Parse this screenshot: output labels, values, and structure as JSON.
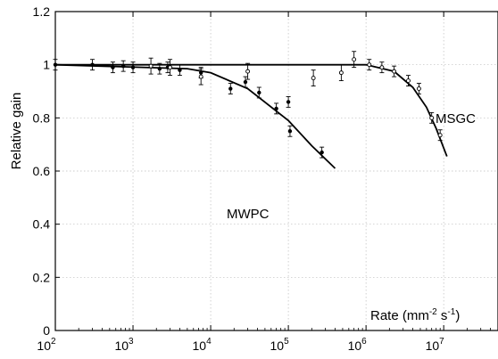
{
  "chart_data": {
    "type": "scatter",
    "title": "",
    "ylabel": "Relative gain",
    "xlabel_prefix": "Rate  (mm",
    "xlabel_sup1": "-2",
    "xlabel_mid": " s",
    "xlabel_sup2": "-1",
    "xlabel_suffix": ")",
    "xscale": "log",
    "xlim": [
      100,
      50000000
    ],
    "ylim": [
      0,
      1.2
    ],
    "grid": true,
    "x_ticks": [
      {
        "value": 100,
        "base": "10",
        "exp": "2"
      },
      {
        "value": 1000,
        "base": "10",
        "exp": "3"
      },
      {
        "value": 10000,
        "base": "10",
        "exp": "4"
      },
      {
        "value": 100000,
        "base": "10",
        "exp": "5"
      },
      {
        "value": 1000000,
        "base": "10",
        "exp": "6"
      },
      {
        "value": 10000000,
        "base": "10",
        "exp": "7"
      }
    ],
    "y_ticks": [
      {
        "value": 0,
        "label": "0"
      },
      {
        "value": 0.2,
        "label": "0.2"
      },
      {
        "value": 0.4,
        "label": "0.4"
      },
      {
        "value": 0.6,
        "label": "0.6"
      },
      {
        "value": 0.8,
        "label": "0.8"
      },
      {
        "value": 1.0,
        "label": "1"
      },
      {
        "value": 1.2,
        "label": "1.2"
      }
    ],
    "series": [
      {
        "name": "MWPC",
        "marker": "filled",
        "points": [
          {
            "x": 100,
            "y": 1.0,
            "err": 0.02
          },
          {
            "x": 300,
            "y": 1.0,
            "err": 0.02
          },
          {
            "x": 550,
            "y": 0.99,
            "err": 0.02
          },
          {
            "x": 750,
            "y": 0.995,
            "err": 0.02
          },
          {
            "x": 1000,
            "y": 0.99,
            "err": 0.02
          },
          {
            "x": 2200,
            "y": 0.985,
            "err": 0.02
          },
          {
            "x": 2800,
            "y": 0.99,
            "err": 0.02
          },
          {
            "x": 4000,
            "y": 0.98,
            "err": 0.02
          },
          {
            "x": 7500,
            "y": 0.97,
            "err": 0.02
          },
          {
            "x": 18000,
            "y": 0.91,
            "err": 0.02
          },
          {
            "x": 28000,
            "y": 0.935,
            "err": 0.02
          },
          {
            "x": 42000,
            "y": 0.895,
            "err": 0.02
          },
          {
            "x": 70000,
            "y": 0.835,
            "err": 0.02
          },
          {
            "x": 100000,
            "y": 0.86,
            "err": 0.02
          },
          {
            "x": 105000,
            "y": 0.75,
            "err": 0.02
          },
          {
            "x": 270000,
            "y": 0.67,
            "err": 0.02
          }
        ],
        "fit": [
          [
            100,
            1.0
          ],
          [
            5000,
            0.985
          ],
          [
            10000,
            0.97
          ],
          [
            30000,
            0.91
          ],
          [
            100000,
            0.79
          ],
          [
            200000,
            0.695
          ],
          [
            400000,
            0.61
          ]
        ]
      },
      {
        "name": "MSGC",
        "marker": "open",
        "points": [
          {
            "x": 1700,
            "y": 0.995,
            "err": 0.03
          },
          {
            "x": 3000,
            "y": 0.99,
            "err": 0.03
          },
          {
            "x": 7500,
            "y": 0.955,
            "err": 0.03
          },
          {
            "x": 30000,
            "y": 0.975,
            "err": 0.03
          },
          {
            "x": 210000,
            "y": 0.95,
            "err": 0.03
          },
          {
            "x": 480000,
            "y": 0.97,
            "err": 0.03
          },
          {
            "x": 700000,
            "y": 1.02,
            "err": 0.03
          },
          {
            "x": 1100000,
            "y": 1.0,
            "err": 0.02
          },
          {
            "x": 1600000,
            "y": 0.99,
            "err": 0.02
          },
          {
            "x": 2300000,
            "y": 0.975,
            "err": 0.02
          },
          {
            "x": 3500000,
            "y": 0.94,
            "err": 0.02
          },
          {
            "x": 4800000,
            "y": 0.91,
            "err": 0.02
          },
          {
            "x": 7000000,
            "y": 0.8,
            "err": 0.02
          },
          {
            "x": 9000000,
            "y": 0.735,
            "err": 0.02
          }
        ],
        "fit": [
          [
            100,
            1.0
          ],
          [
            1000000,
            1.0
          ],
          [
            2300000,
            0.975
          ],
          [
            4000000,
            0.915
          ],
          [
            6000000,
            0.84
          ],
          [
            8000000,
            0.76
          ],
          [
            11000000,
            0.655
          ]
        ]
      }
    ]
  }
}
